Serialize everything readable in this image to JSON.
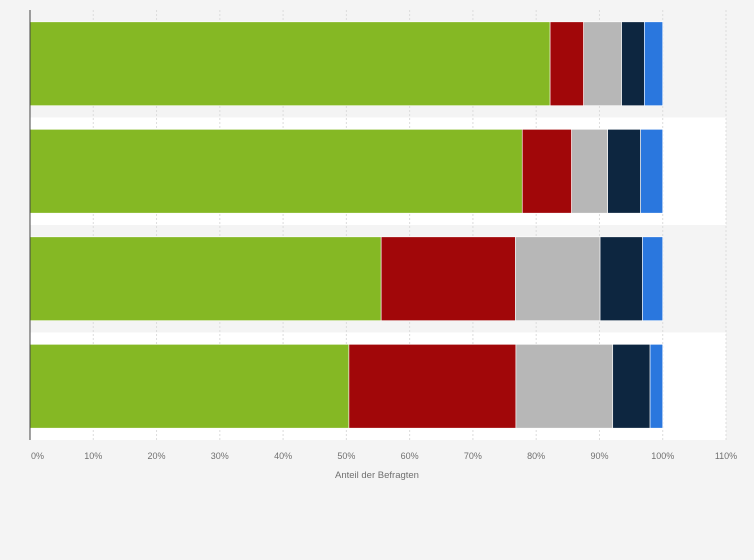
{
  "chart_data": {
    "type": "bar",
    "orientation": "horizontal",
    "stacked": true,
    "categories": [
      "",
      "",
      "",
      ""
    ],
    "series": [
      {
        "color": "#85b824",
        "values": [
          82.2,
          77.8,
          55.5,
          50.4
        ]
      },
      {
        "color": "#a10709",
        "values": [
          5.3,
          7.8,
          21.2,
          26.4
        ]
      },
      {
        "color": "#b7b7b7",
        "values": [
          6.0,
          5.7,
          13.4,
          15.3
        ]
      },
      {
        "color": "#0d2640",
        "values": [
          3.6,
          5.2,
          6.7,
          5.9
        ]
      },
      {
        "color": "#2a77de",
        "values": [
          2.9,
          3.5,
          3.2,
          2.0
        ]
      }
    ],
    "title": "",
    "xlabel": "Anteil der Befragten",
    "ylabel": "",
    "xlim": [
      0,
      110
    ],
    "x_ticks": [
      "0%",
      "10%",
      "20%",
      "30%",
      "40%",
      "50%",
      "60%",
      "70%",
      "80%",
      "90%",
      "100%",
      "110%"
    ],
    "grid": true,
    "legend": "none"
  }
}
